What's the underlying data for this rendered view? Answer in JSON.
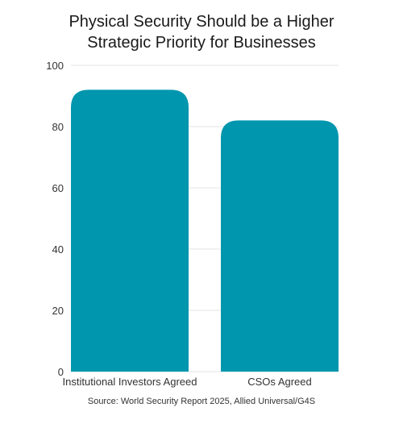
{
  "chart_data": {
    "type": "bar",
    "title_lines": [
      "Physical Security Should be a Higher",
      "Strategic Priority for Businesses"
    ],
    "categories": [
      "Institutional Investors Agreed",
      "CSOs Agreed"
    ],
    "values": [
      92,
      82
    ],
    "ylim": [
      0,
      100
    ],
    "yticks": [
      0,
      20,
      40,
      60,
      80,
      100
    ],
    "grid": true,
    "bar_color": "#0096AE",
    "grid_color": "#E3E3E3",
    "source": "Source: World Security Report 2025, Allied Universal/G4S"
  }
}
